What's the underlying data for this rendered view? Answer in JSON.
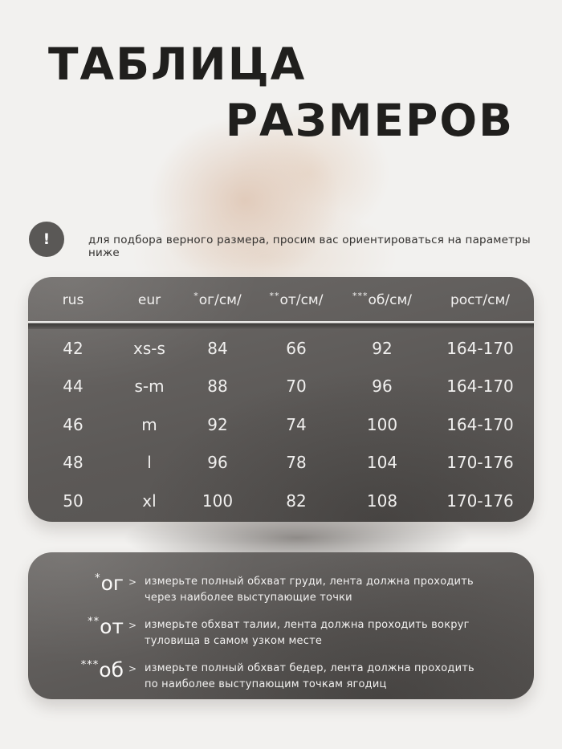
{
  "title": {
    "line1": "ТАБЛИЦА",
    "line2": "РАЗМЕРОВ"
  },
  "notice": {
    "icon": "!",
    "text": "для подбора верного размера, просим вас ориентироваться на параметры ниже"
  },
  "size_table": {
    "columns": [
      {
        "prefix": "",
        "label": "rus"
      },
      {
        "prefix": "",
        "label": "eur"
      },
      {
        "prefix": "*",
        "label": "ог/см/"
      },
      {
        "prefix": "**",
        "label": "от/см/"
      },
      {
        "prefix": "***",
        "label": "об/см/"
      },
      {
        "prefix": "",
        "label": "рост/см/"
      }
    ],
    "rows": [
      [
        "42",
        "xs-s",
        "84",
        "66",
        "92",
        "164-170"
      ],
      [
        "44",
        "s-m",
        "88",
        "70",
        "96",
        "164-170"
      ],
      [
        "46",
        "m",
        "92",
        "74",
        "100",
        "164-170"
      ],
      [
        "48",
        "l",
        "96",
        "78",
        "104",
        "170-176"
      ],
      [
        "50",
        "xl",
        "100",
        "82",
        "108",
        "170-176"
      ]
    ]
  },
  "legend": {
    "items": [
      {
        "asterisks": "*",
        "term": "ог",
        "arrow": ">",
        "text": "измерьте полный обхват груди, лента должна проходить через наиболее выступающие точки"
      },
      {
        "asterisks": "**",
        "term": "от",
        "arrow": ">",
        "text": "измерьте обхват талии, лента должна проходить вокруг туловища в самом узком месте"
      },
      {
        "asterisks": "***",
        "term": "об",
        "arrow": ">",
        "text": "измерьте полный обхват бедер, лента должна проходить по наиболее выступающим точкам ягодиц"
      }
    ]
  },
  "colors": {
    "page_bg": "#f2f1ef",
    "panel_dark": "#5c5957",
    "notice_circle": "#5a5856",
    "title_text": "#201f1d",
    "light_text": "#f2f1f0"
  }
}
